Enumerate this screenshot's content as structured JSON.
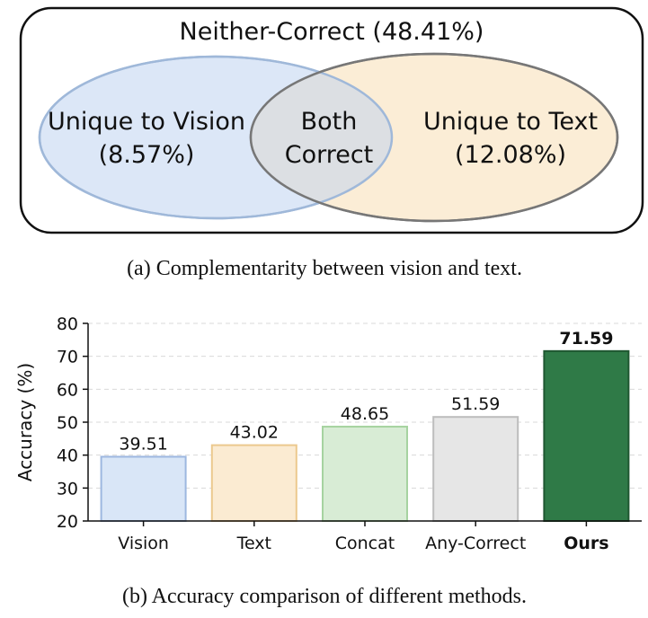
{
  "venn": {
    "outer_label": "Neither-Correct (48.41%)",
    "left_line1": "Unique to Vision",
    "left_line2": "(8.57%)",
    "center_line1": "Both",
    "center_line2": "Correct",
    "right_line1": "Unique to Text",
    "right_line2": "(12.08%)",
    "caption": "(a) Complementarity between vision and text.",
    "colors": {
      "vision": "#dce7f7",
      "text": "#fbedd6",
      "vision_stroke": "#9fb8d9",
      "text_stroke": "#777777"
    }
  },
  "chart_data": {
    "type": "bar",
    "categories": [
      "Vision",
      "Text",
      "Concat",
      "Any-Correct",
      "Ours"
    ],
    "values": [
      39.51,
      43.02,
      48.65,
      51.59,
      71.59
    ],
    "value_labels": [
      "39.51",
      "43.02",
      "48.65",
      "51.59",
      "71.59"
    ],
    "ylabel": "Accuracy (%)",
    "ylim": [
      20,
      80
    ],
    "yticks": [
      "20",
      "30",
      "40",
      "50",
      "60",
      "70",
      "80"
    ],
    "grid": true,
    "highlight": "Ours",
    "colors": [
      "#d9e6f7",
      "#fbebd2",
      "#d8ecd5",
      "#e6e6e6",
      "#2f7a47"
    ],
    "edge_colors": [
      "#9db7e0",
      "#ecc98e",
      "#a6d3a0",
      "#bdbdbd",
      "#1f5731"
    ],
    "caption": "(b) Accuracy comparison of different methods."
  }
}
